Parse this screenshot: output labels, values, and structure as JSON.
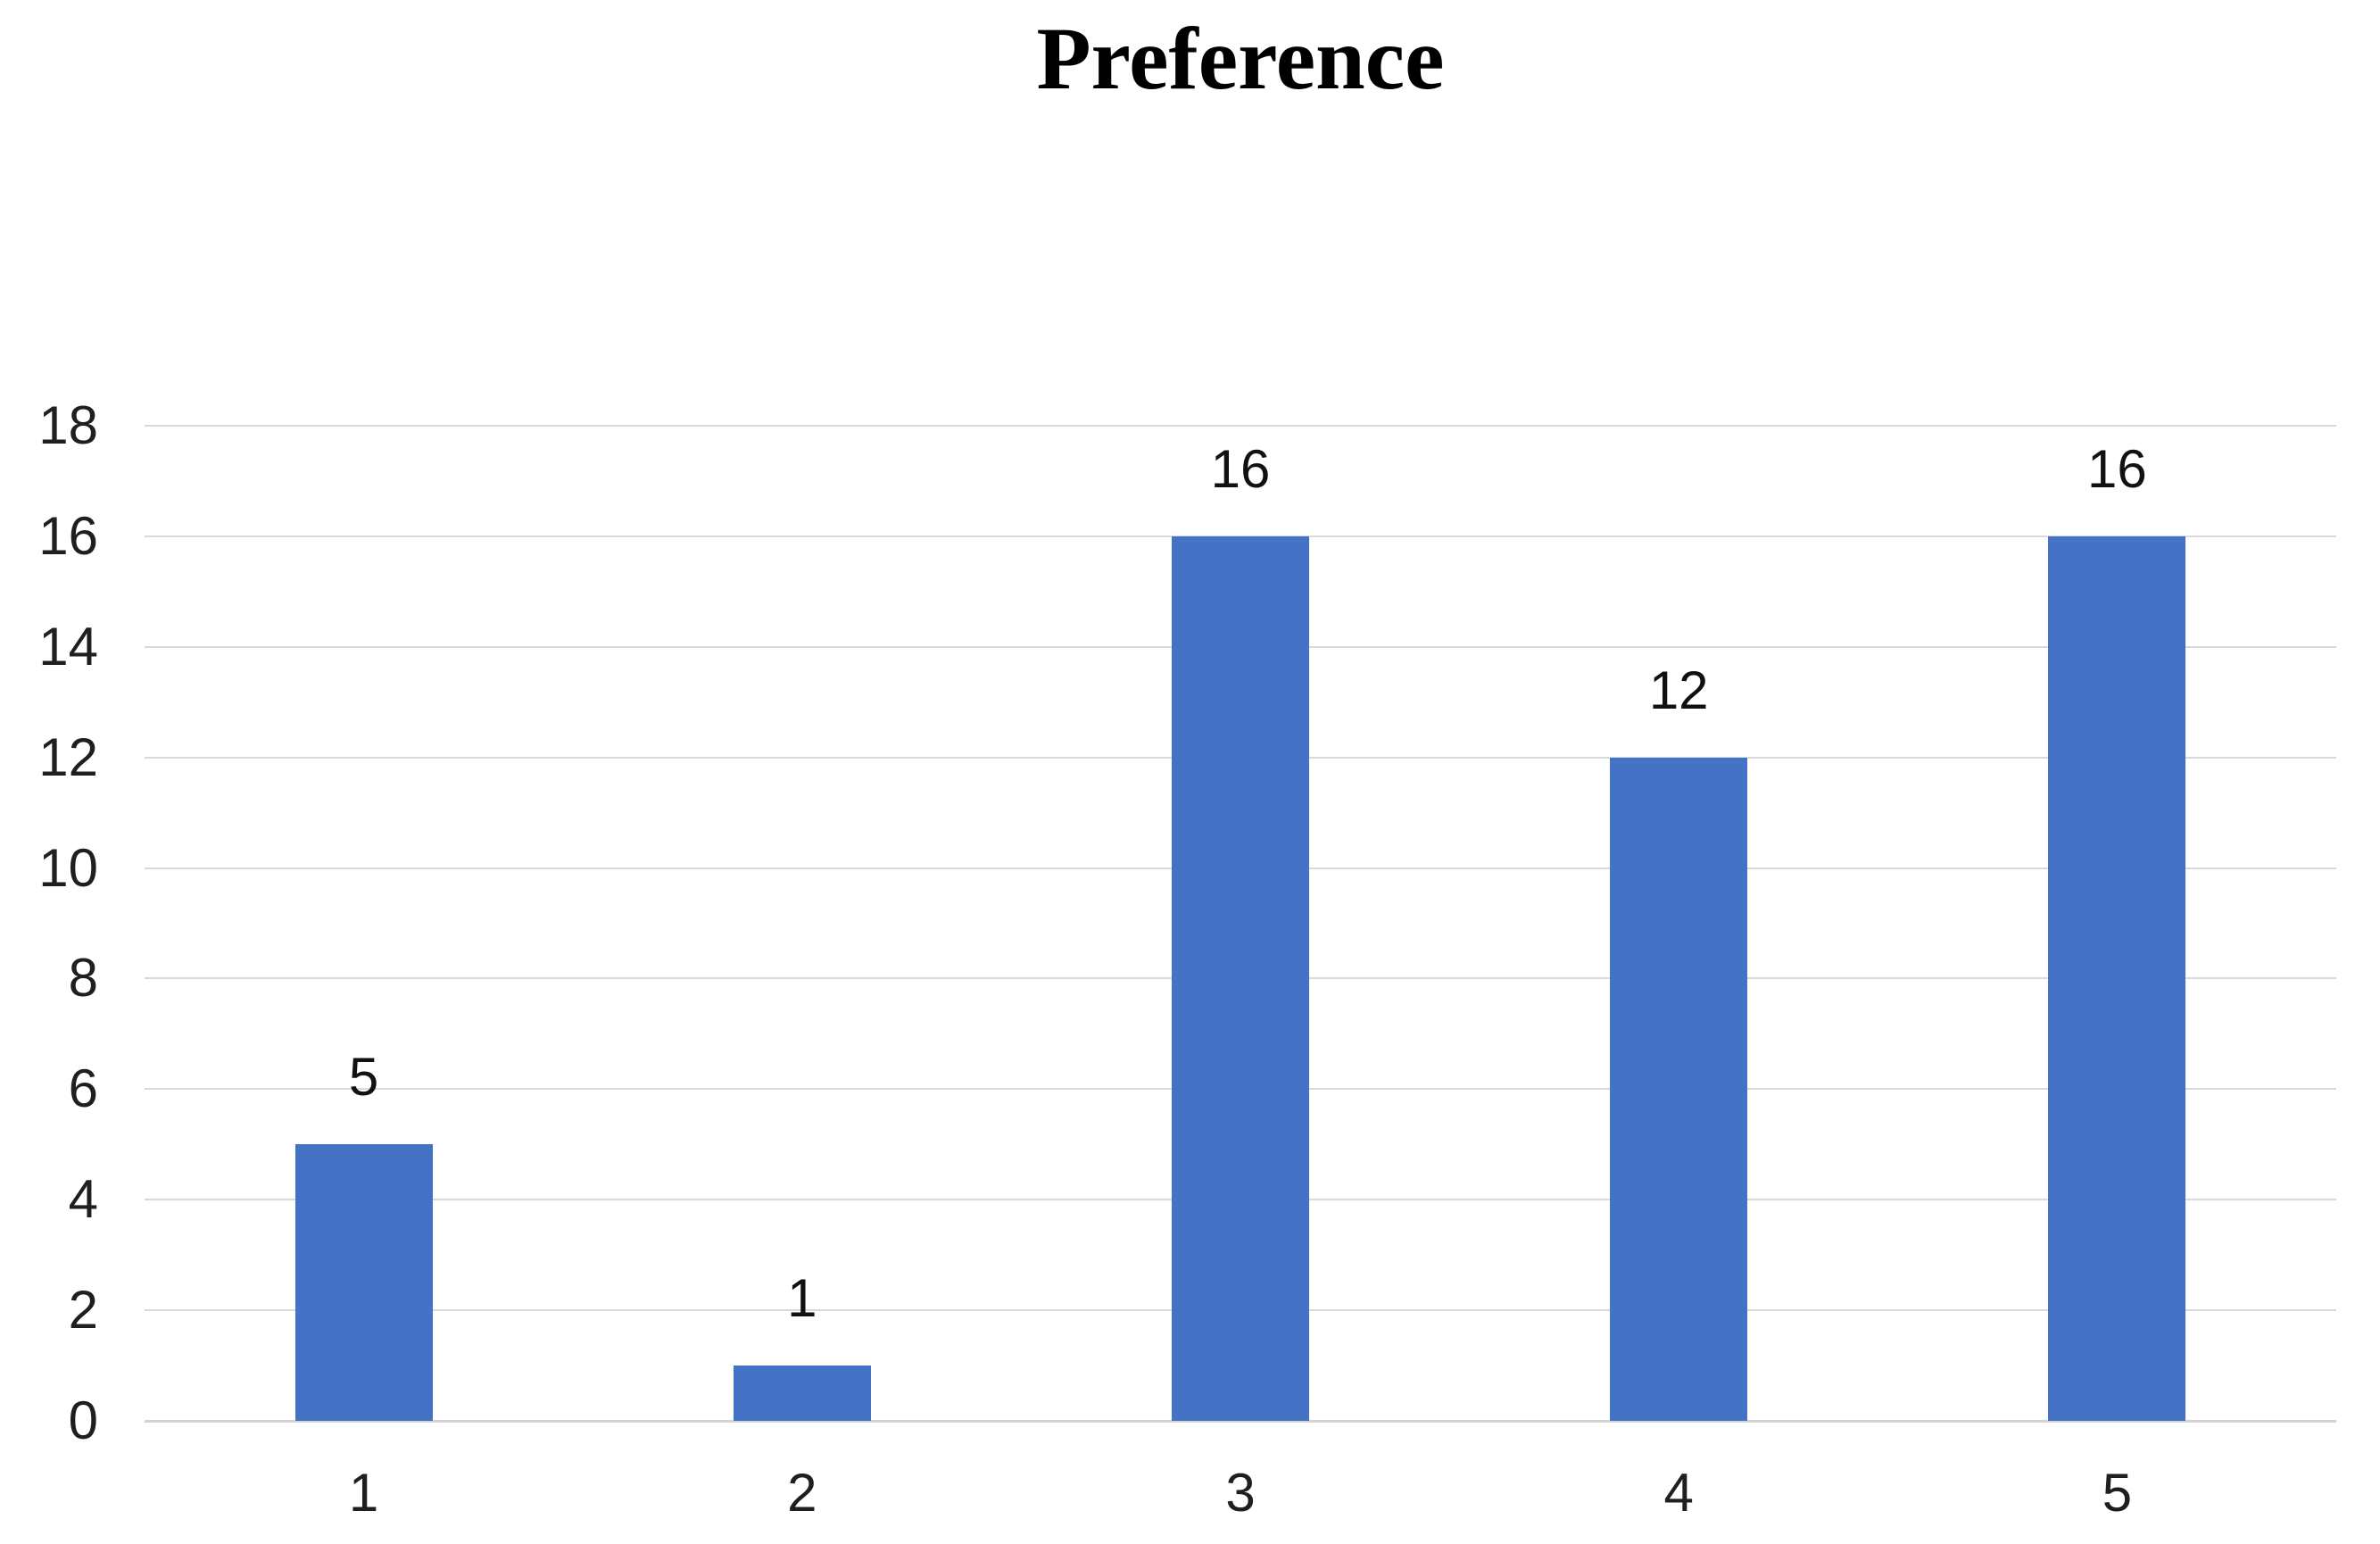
{
  "chart_data": {
    "type": "bar",
    "title": "Preference",
    "categories": [
      "1",
      "2",
      "3",
      "4",
      "5"
    ],
    "values": [
      5,
      1,
      16,
      12,
      16
    ],
    "data_labels": [
      "5",
      "1",
      "16",
      "12",
      "16"
    ],
    "yticks": [
      0,
      2,
      4,
      6,
      8,
      10,
      12,
      14,
      16,
      18
    ],
    "ylim": [
      0,
      18
    ],
    "xlabel": "",
    "ylabel": "",
    "grid": "horizontal",
    "legend": "none",
    "colors": {
      "bar": "#4472C4",
      "gridline": "#D9D9D9",
      "axis_line": "#D2D2D2",
      "tick_label": "#1F1F1F",
      "data_label": "#111111",
      "title": "#000000",
      "background": "#FFFFFF"
    }
  }
}
